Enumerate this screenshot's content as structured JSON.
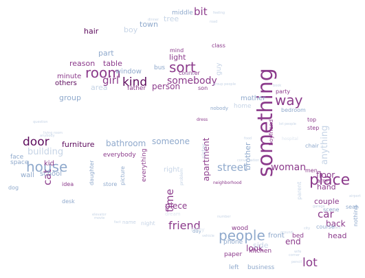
{
  "palette": {
    "dark": "#5c0a5c",
    "purple": "#8b3a8b",
    "mid": "#9c6fb0",
    "blue": "#8fa9cc",
    "pale": "#c6d4e6",
    "faint": "#dde5ef"
  },
  "words": [
    {
      "t": "something",
      "c": "purple"
    },
    {
      "t": "place",
      "c": "purple"
    },
    {
      "t": "house",
      "c": "blue"
    },
    {
      "t": "people",
      "c": "blue"
    },
    {
      "t": "sort",
      "c": "purple"
    },
    {
      "t": "room",
      "c": "purple"
    },
    {
      "t": "way",
      "c": "purple"
    },
    {
      "t": "kind",
      "c": "dark"
    },
    {
      "t": "door",
      "c": "dark"
    },
    {
      "t": "lot",
      "c": "purple"
    },
    {
      "t": "friend",
      "c": "purple"
    },
    {
      "t": "woman",
      "c": "purple"
    },
    {
      "t": "street",
      "c": "blue"
    },
    {
      "t": "car",
      "c": "purple"
    },
    {
      "t": "time",
      "c": "purple"
    },
    {
      "t": "girl",
      "c": "purple"
    },
    {
      "t": "bit",
      "c": "purple"
    },
    {
      "t": "somebody",
      "c": "purple"
    },
    {
      "t": "person",
      "c": "purple"
    },
    {
      "t": "cat",
      "c": "purple"
    },
    {
      "t": "someone",
      "c": "blue"
    },
    {
      "t": "building",
      "c": "pale"
    },
    {
      "t": "floor",
      "c": "purple"
    },
    {
      "t": "back",
      "c": "purple"
    },
    {
      "t": "end",
      "c": "purple"
    },
    {
      "t": "piece",
      "c": "purple"
    },
    {
      "t": "bathroom",
      "c": "blue"
    },
    {
      "t": "furniture",
      "c": "dark"
    },
    {
      "t": "apartment",
      "c": "purple"
    },
    {
      "t": "brother",
      "c": "blue"
    },
    {
      "t": "boy",
      "c": "pale"
    },
    {
      "t": "hair",
      "c": "dark"
    },
    {
      "t": "town",
      "c": "blue"
    },
    {
      "t": "light",
      "c": "purple"
    },
    {
      "t": "part",
      "c": "blue"
    },
    {
      "t": "table",
      "c": "purple"
    },
    {
      "t": "reason",
      "c": "purple"
    },
    {
      "t": "others",
      "c": "dark"
    },
    {
      "t": "minute",
      "c": "purple"
    },
    {
      "t": "group",
      "c": "blue"
    },
    {
      "t": "window",
      "c": "blue"
    },
    {
      "t": "area",
      "c": "pale"
    },
    {
      "t": "father",
      "c": "purple"
    },
    {
      "t": "mother",
      "c": "blue"
    },
    {
      "t": "look",
      "c": "purple"
    },
    {
      "t": "head",
      "c": "purple"
    },
    {
      "t": "hand",
      "c": "purple"
    },
    {
      "t": "couple",
      "c": "purple"
    },
    {
      "t": "school",
      "c": "blue"
    },
    {
      "t": "kid",
      "c": "purple"
    },
    {
      "t": "wall",
      "c": "blue"
    },
    {
      "t": "face",
      "c": "blue"
    },
    {
      "t": "space",
      "c": "blue"
    },
    {
      "t": "everybody",
      "c": "purple"
    },
    {
      "t": "everything",
      "c": "purple"
    },
    {
      "t": "anything",
      "c": "pale"
    },
    {
      "t": "tree",
      "c": "pale"
    },
    {
      "t": "middle",
      "c": "blue"
    },
    {
      "t": "bed",
      "c": "purple"
    },
    {
      "t": "wood",
      "c": "purple"
    },
    {
      "t": "front",
      "c": "blue"
    },
    {
      "t": "phone",
      "c": "blue"
    },
    {
      "t": "kitchen",
      "c": "purple"
    },
    {
      "t": "paper",
      "c": "purple"
    },
    {
      "t": "left",
      "c": "blue"
    },
    {
      "t": "business",
      "c": "blue"
    },
    {
      "t": "mind",
      "c": "purple"
    },
    {
      "t": "counter",
      "c": "purple"
    },
    {
      "t": "son",
      "c": "purple"
    },
    {
      "t": "class",
      "c": "purple"
    },
    {
      "t": "party",
      "c": "purple"
    },
    {
      "t": "bedroom",
      "c": "blue"
    },
    {
      "t": "top",
      "c": "purple"
    },
    {
      "t": "step",
      "c": "purple"
    },
    {
      "t": "arm",
      "c": "purple"
    },
    {
      "t": "boyfriend",
      "c": "purple"
    },
    {
      "t": "men",
      "c": "purple"
    },
    {
      "t": "course",
      "c": "blue"
    },
    {
      "t": "scene",
      "c": "blue"
    },
    {
      "t": "nothing",
      "c": "blue"
    },
    {
      "t": "seat",
      "c": "blue"
    },
    {
      "t": "chair",
      "c": "blue"
    },
    {
      "t": "idea",
      "c": "purple"
    },
    {
      "t": "dog",
      "c": "blue"
    },
    {
      "t": "desk",
      "c": "blue"
    },
    {
      "t": "daughter",
      "c": "blue"
    },
    {
      "t": "picture",
      "c": "blue"
    },
    {
      "t": "store",
      "c": "blue"
    },
    {
      "t": "right",
      "c": "pale"
    },
    {
      "t": "night",
      "c": "pale"
    },
    {
      "t": "name",
      "c": "pale"
    },
    {
      "t": "home",
      "c": "pale"
    },
    {
      "t": "nobody",
      "c": "blue"
    },
    {
      "t": "bus",
      "c": "blue"
    },
    {
      "t": "side",
      "c": "pale"
    },
    {
      "t": "parent",
      "c": "pale"
    },
    {
      "t": "sister",
      "c": "pale"
    },
    {
      "t": "day",
      "c": "blue"
    },
    {
      "t": "neighborhood",
      "c": "purple"
    },
    {
      "t": "problem",
      "c": "pale"
    },
    {
      "t": "dress",
      "c": "purple"
    },
    {
      "t": "guy",
      "c": "pale"
    },
    {
      "t": "baby",
      "c": "faint"
    },
    {
      "t": "dream",
      "c": "faint"
    },
    {
      "t": "hospital",
      "c": "faint"
    },
    {
      "t": "food",
      "c": "pale"
    },
    {
      "t": "question",
      "c": "pale"
    },
    {
      "t": "living room",
      "c": "pale"
    },
    {
      "t": "anybody",
      "c": "pale"
    },
    {
      "t": "elevator",
      "c": "pale"
    },
    {
      "t": "movie",
      "c": "pale"
    },
    {
      "t": "fact",
      "c": "pale"
    },
    {
      "t": "group people",
      "c": "pale"
    },
    {
      "t": "box",
      "c": "pale"
    },
    {
      "t": "book",
      "c": "pale"
    },
    {
      "t": "city",
      "c": "pale"
    },
    {
      "t": "garage",
      "c": "pale"
    },
    {
      "t": "plant",
      "c": "pale"
    },
    {
      "t": "wife",
      "c": "pale"
    },
    {
      "t": "feeling",
      "c": "pale"
    },
    {
      "t": "dinner",
      "c": "pale"
    },
    {
      "t": "road",
      "c": "pale"
    },
    {
      "t": "lot people",
      "c": "pale"
    },
    {
      "t": "conversation",
      "c": "pale"
    },
    {
      "t": "vehicle",
      "c": "pale"
    },
    {
      "t": "number",
      "c": "pale"
    },
    {
      "t": "corner",
      "c": "pale"
    },
    {
      "t": "pencil",
      "c": "pale"
    },
    {
      "t": "ground",
      "c": "pale"
    },
    {
      "t": "airport",
      "c": "pale"
    },
    {
      "t": "clothes",
      "c": "faint"
    }
  ]
}
